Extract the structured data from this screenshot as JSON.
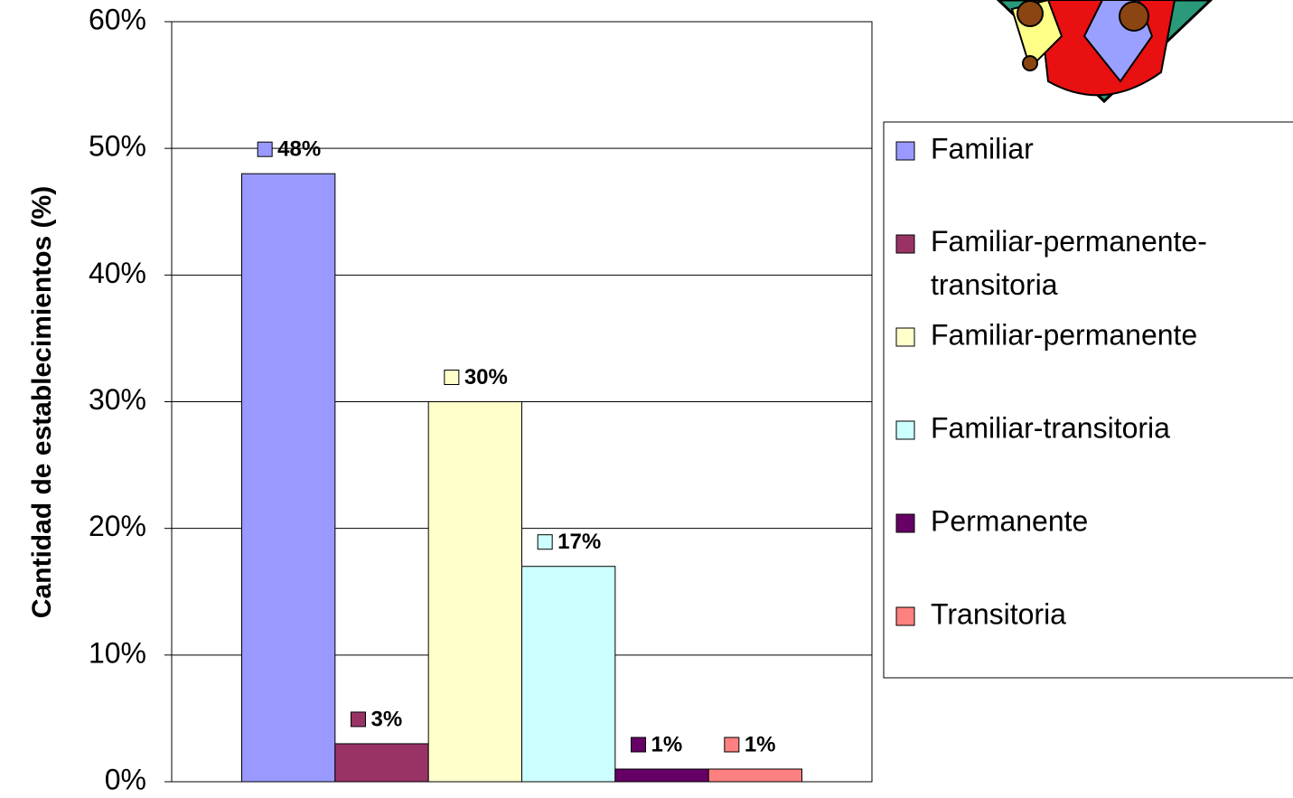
{
  "chart_data": {
    "type": "bar",
    "y_label": "Cantidad de establecimientos (%)",
    "ylim": [
      0,
      60
    ],
    "yticks": [
      {
        "value": 0,
        "label": "0%"
      },
      {
        "value": 10,
        "label": "10%"
      },
      {
        "value": 20,
        "label": "20%"
      },
      {
        "value": 30,
        "label": "30%"
      },
      {
        "value": 40,
        "label": "40%"
      },
      {
        "value": 50,
        "label": "50%"
      },
      {
        "value": 60,
        "label": "60%"
      }
    ],
    "grid": true,
    "legend": "right",
    "series": [
      {
        "name": "Familiar",
        "color": "#9999ff",
        "values": [
          48
        ],
        "value_labels": [
          "48%"
        ]
      },
      {
        "name": "Familiar-permanente-transitoria",
        "color": "#993366",
        "values": [
          3
        ],
        "value_labels": [
          "3%"
        ]
      },
      {
        "name": "Familiar-permanente",
        "color": "#ffffcc",
        "values": [
          30
        ],
        "value_labels": [
          "30%"
        ]
      },
      {
        "name": "Familiar-transitoria",
        "color": "#ccffff",
        "values": [
          17
        ],
        "value_labels": [
          "17%"
        ]
      },
      {
        "name": "Permanente",
        "color": "#660066",
        "values": [
          1
        ],
        "value_labels": [
          "1%"
        ]
      },
      {
        "name": "Transitoria",
        "color": "#ff8080",
        "values": [
          1
        ],
        "value_labels": [
          "1%"
        ]
      }
    ]
  }
}
